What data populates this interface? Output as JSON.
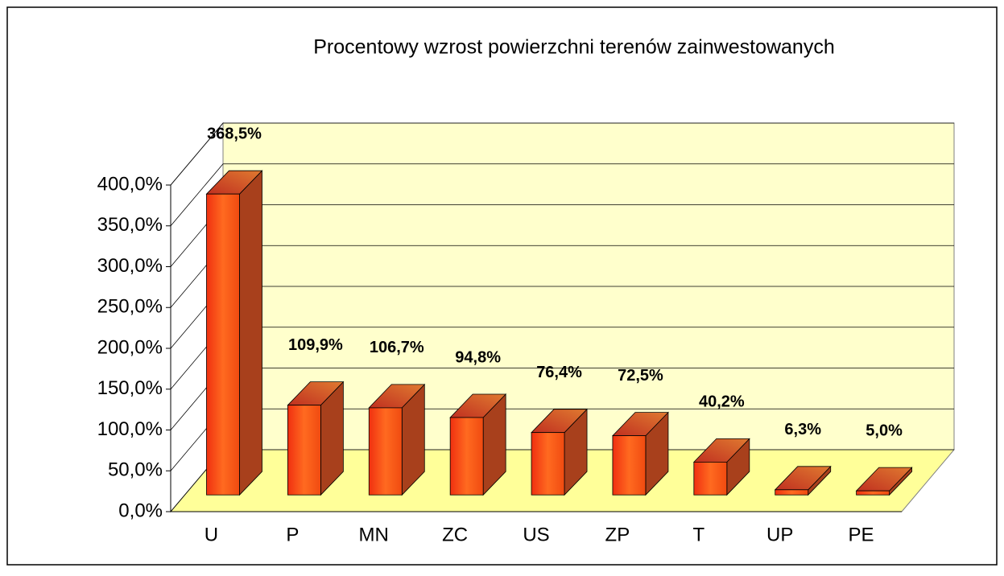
{
  "chart_data": {
    "type": "bar3d",
    "title": "Procentowy wzrost powierzchni terenów zainwestowanych",
    "categories": [
      "U",
      "P",
      "MN",
      "ZC",
      "US",
      "ZP",
      "T",
      "UP",
      "PE"
    ],
    "values": [
      368.5,
      109.9,
      106.7,
      94.8,
      76.4,
      72.5,
      40.2,
      6.3,
      5.0
    ],
    "value_labels": [
      "368,5%",
      "109,9%",
      "106,7%",
      "94,8%",
      "76,4%",
      "72,5%",
      "40,2%",
      "6,3%",
      "5,0%"
    ],
    "color": "#ff5a1a",
    "ylim": [
      0,
      400
    ],
    "yticks": [
      {
        "value": 0,
        "label": "0,0%"
      },
      {
        "value": 50,
        "label": "50,0%"
      },
      {
        "value": 100,
        "label": "100,0%"
      },
      {
        "value": 150,
        "label": "150,0%"
      },
      {
        "value": 200,
        "label": "200,0%"
      },
      {
        "value": 250,
        "label": "250,0%"
      },
      {
        "value": 300,
        "label": "300,0%"
      },
      {
        "value": 350,
        "label": "350,0%"
      },
      {
        "value": 400,
        "label": "400,0%"
      }
    ],
    "grid": true
  }
}
